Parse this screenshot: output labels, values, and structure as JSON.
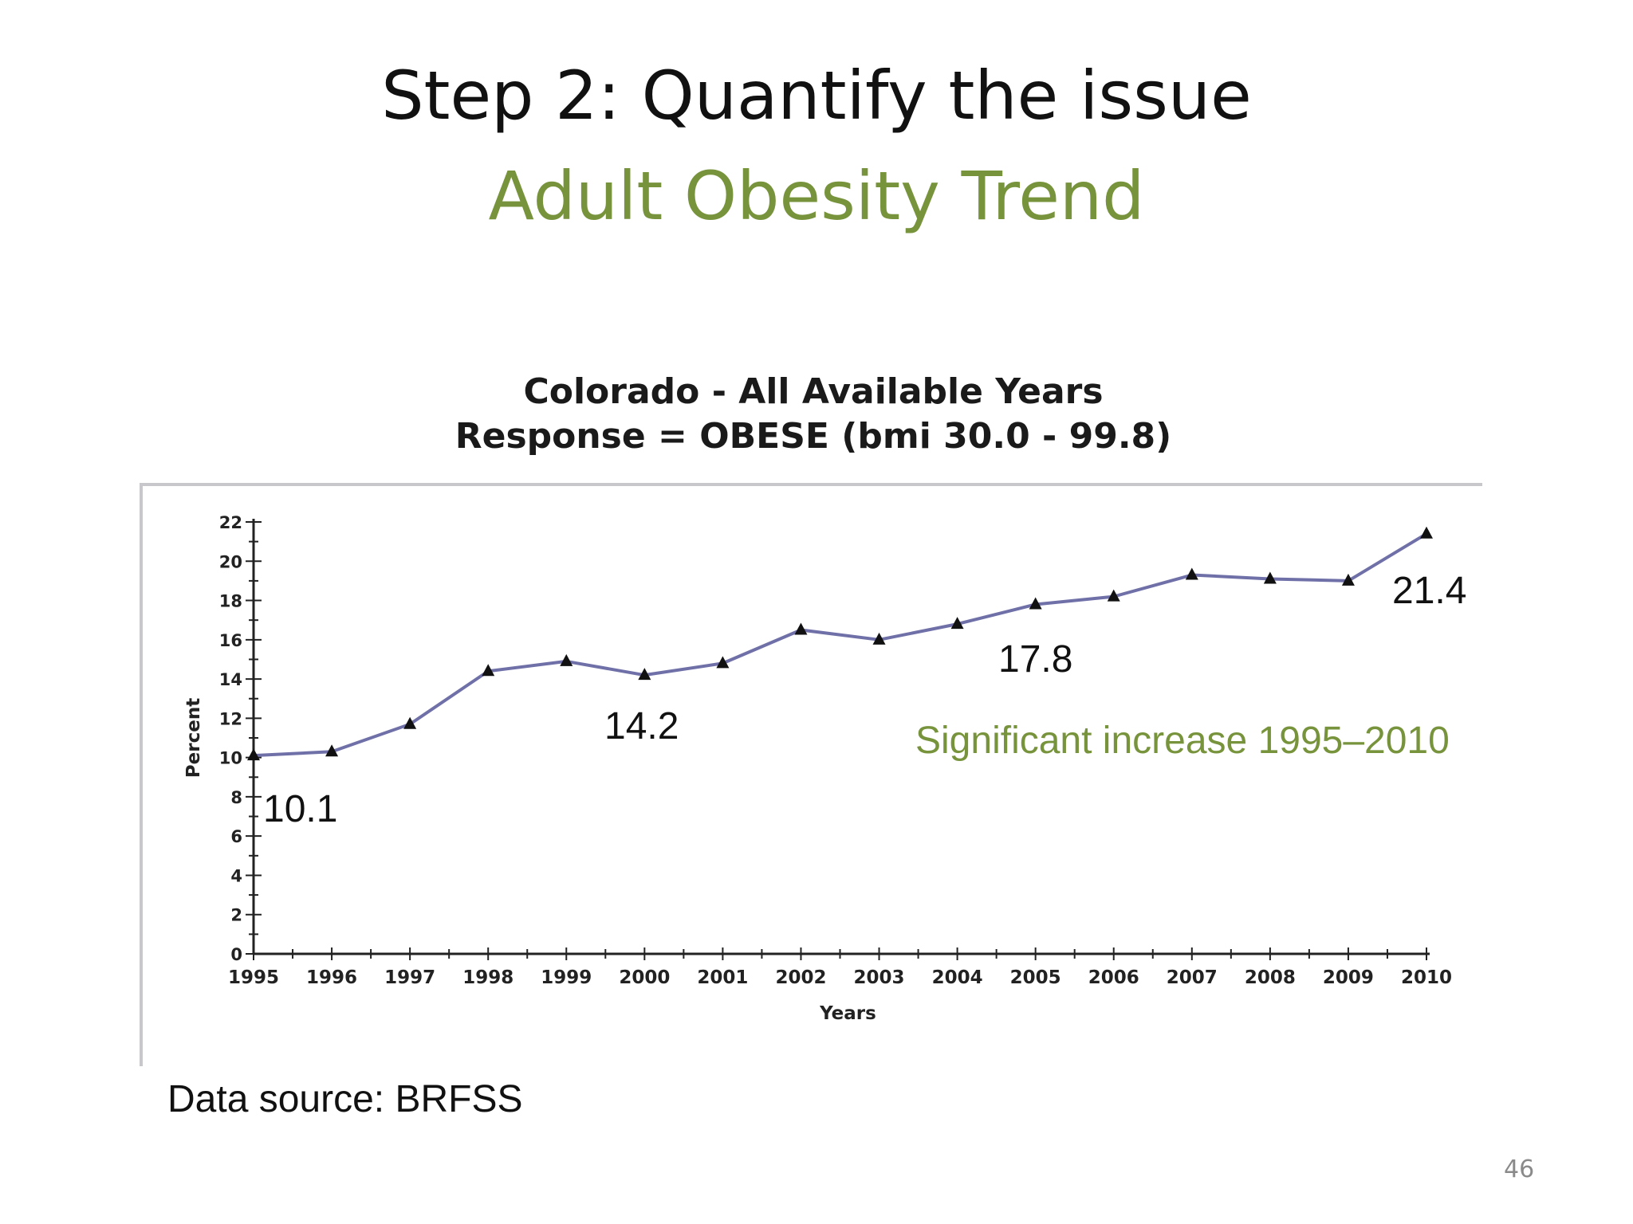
{
  "slide": {
    "title": "Step 2: Quantify the issue",
    "subtitle": "Adult Obesity Trend",
    "source": "Data source: BRFSS",
    "page_number": "46",
    "colors": {
      "title": "#111111",
      "subtitle": "#77933c",
      "line": "#7070a8",
      "marker": "#111111"
    }
  },
  "chart_data": {
    "type": "line",
    "title": "Colorado - All Available Years",
    "subtitle": "Response = OBESE (bmi 30.0 - 99.8)",
    "xlabel": "Years",
    "ylabel": "Percent",
    "x": [
      "1995",
      "1996",
      "1997",
      "1998",
      "1999",
      "2000",
      "2001",
      "2002",
      "2003",
      "2004",
      "2005",
      "2006",
      "2007",
      "2008",
      "2009",
      "2010"
    ],
    "series": [
      {
        "values": [
          10.1,
          10.3,
          11.7,
          14.4,
          14.9,
          14.2,
          14.8,
          16.5,
          16.0,
          16.8,
          17.8,
          18.2,
          19.3,
          19.1,
          19.0,
          21.4
        ]
      }
    ],
    "ylim": [
      0,
      22
    ],
    "yticks": [
      0,
      2,
      4,
      6,
      8,
      10,
      12,
      14,
      16,
      18,
      20,
      22
    ],
    "grid": false,
    "marker": "triangle",
    "callouts": [
      {
        "label": "10.1",
        "index": 0
      },
      {
        "label": "14.2",
        "index": 5
      },
      {
        "label": "17.8",
        "index": 10
      },
      {
        "label": "21.4",
        "index": 15
      }
    ],
    "annotation": "Significant increase 1995–2010"
  }
}
